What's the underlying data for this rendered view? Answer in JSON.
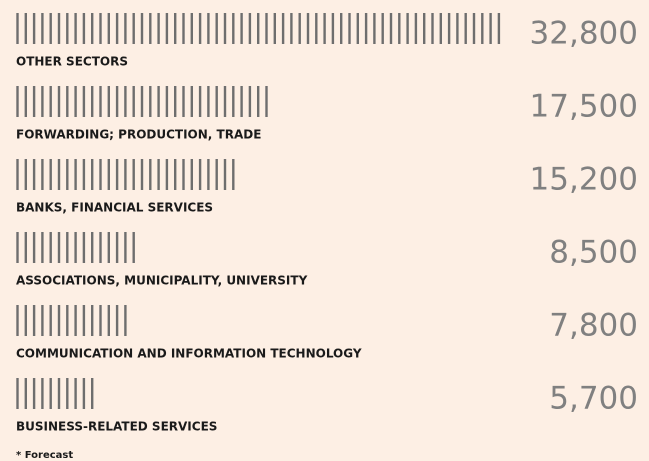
{
  "chart_data": {
    "type": "bar",
    "orientation": "horizontal",
    "categories": [
      "OTHER SECTORS",
      "FORWARDING; PRODUCTION, TRADE",
      "BANKS, FINANCIAL SERVICES",
      "ASSOCIATIONS, MUNICIPALITY, UNIVERSITY",
      "COMMUNICATION AND INFORMATION TECHNOLOGY",
      "BUSINESS-RELATED SERVICES"
    ],
    "values": [
      32800,
      17500,
      15200,
      8500,
      7800,
      5700
    ],
    "value_labels": [
      "32,800",
      "17,500",
      "15,200",
      "8,500",
      "7,800",
      "5,700"
    ],
    "color": "#6e6e6e",
    "footnote": "* Forecast"
  }
}
